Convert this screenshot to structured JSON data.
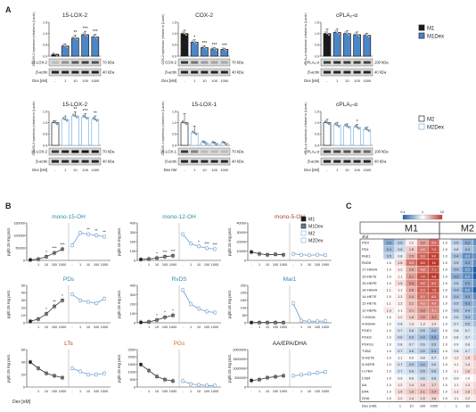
{
  "panels": {
    "A": "A",
    "B": "B",
    "C": "C"
  },
  "colors": {
    "m1": "#1a1a1a",
    "m1dex": "#4a86c8",
    "m2": "#ffffff",
    "m2dex": "#7ab3e0",
    "red": "#c0392b"
  },
  "legendA_top": [
    "M1",
    "M1Dex"
  ],
  "legendA_bot": [
    "M2",
    "M2Dex"
  ],
  "legendB": [
    "M1",
    "M1Dex",
    "M2",
    "M2Dex"
  ],
  "panelA": {
    "doses": [
      "-",
      "1",
      "10",
      "100",
      "1000"
    ],
    "kda70": "70 kDa",
    "kda40": "40 kDa",
    "kda100": "100 kDa",
    "actin": "β-actin",
    "dex_nm": "Dex [nM]",
    "dex_nm2": "Dex nM",
    "top": [
      {
        "title": "15-LOX-2",
        "ylabel": "15-LOX-2 expression (relative to β-actin)",
        "band": "15-LOX-2",
        "kda": "70 kDa",
        "ticks": [
          "1.5",
          "1.0",
          "0.5",
          "0.0"
        ],
        "ymax": 1.5,
        "values": [
          0.08,
          0.45,
          0.8,
          0.95,
          0.85
        ],
        "errors": [
          0.02,
          0.1,
          0.12,
          0.15,
          0.12
        ],
        "sig": [
          "",
          "",
          "**",
          "***",
          "***"
        ],
        "style": "m1"
      },
      {
        "title": "COX-2",
        "ylabel": "COX-2 expression (relative to β-actin)",
        "band": "COX-2",
        "kda": "70 kDa",
        "ticks": [
          "1.5",
          "1.0",
          "0.5",
          "0.0"
        ],
        "ymax": 1.5,
        "values": [
          1.0,
          0.62,
          0.38,
          0.32,
          0.3
        ],
        "errors": [
          0.15,
          0.1,
          0.08,
          0.06,
          0.05
        ],
        "sig": [
          "",
          "*",
          "***",
          "***",
          "***"
        ],
        "style": "m1"
      },
      {
        "title": "cPLA₂-α",
        "ylabel": "cPLA₂-α expression (relative to β-actin)",
        "band": "cPLA₂-α",
        "kda": "100 kDa",
        "ticks": [
          "1.5",
          "1.0",
          "0.5",
          "0.0"
        ],
        "ymax": 1.5,
        "values": [
          1.0,
          1.05,
          1.0,
          0.95,
          0.92
        ],
        "errors": [
          0.2,
          0.15,
          0.12,
          0.12,
          0.1
        ],
        "sig": [
          "",
          "",
          "",
          "",
          ""
        ],
        "style": "m1"
      }
    ],
    "bottom": [
      {
        "title": "15-LOX-2",
        "ylabel": "15-LOX-2 expression (relative to β-actin)",
        "band": "15-LOX-2",
        "kda": "70 kDa",
        "ticks": [
          "1.5",
          "1.0",
          "0.5",
          "0.0"
        ],
        "ymax": 1.5,
        "values": [
          1.0,
          1.15,
          1.3,
          1.25,
          1.15
        ],
        "errors": [
          0.1,
          0.15,
          0.18,
          0.15,
          0.15
        ],
        "sig": [
          "",
          "",
          "**",
          "***",
          "**"
        ],
        "style": "m2"
      },
      {
        "title": "15-LOX-1",
        "ylabel": "15-LOX-1 expression (relative to β-actin)",
        "band": "15-LOX-1",
        "kda": "70 kDa",
        "ticks": [
          "1.5",
          "1.0",
          "0.5",
          "0.0"
        ],
        "ymax": 1.5,
        "values": [
          1.0,
          0.55,
          0.12,
          0.1,
          0.1
        ],
        "errors": [
          0.4,
          0.3,
          0.05,
          0.05,
          0.05
        ],
        "sig": [
          "",
          "",
          "",
          "",
          ""
        ],
        "style": "m2"
      },
      {
        "title": "cPLA₂-α",
        "ylabel": "cPLA₂-α expression (relative to β-actin)",
        "band": "cPLA₂-α",
        "kda": "100 kDa",
        "ticks": [
          "1.5",
          "1.0",
          "0.5",
          "0.0"
        ],
        "ymax": 1.5,
        "values": [
          1.0,
          0.9,
          0.85,
          0.8,
          0.7
        ],
        "errors": [
          0.15,
          0.12,
          0.1,
          0.12,
          0.1
        ],
        "sig": [
          "",
          "",
          "",
          "*",
          ""
        ],
        "style": "m2"
      }
    ]
  },
  "panelB": {
    "ylabel": "pg/0.15 mg prot.",
    "dex_label": "Dex [nM]",
    "doses": [
      "-",
      "1",
      "10",
      "100",
      "1000"
    ],
    "subplots": [
      {
        "title": "mono-15-OH",
        "title_color": "#2e8ba8",
        "ticks": [
          "150000",
          "100000",
          "50000",
          "0"
        ],
        "ymax": 150000,
        "m1": [
          2000,
          5000,
          15000,
          30000,
          45000
        ],
        "m2": [
          60000,
          110000,
          105000,
          100000,
          95000
        ],
        "sig_m1": [
          "",
          "",
          "*",
          "***",
          "***"
        ],
        "sig_m2": [
          "",
          "",
          "**",
          "**",
          "**"
        ]
      },
      {
        "title": "mono-12-OH",
        "title_color": "#2e8ba8",
        "ticks": [
          "400",
          "300",
          "200",
          "100",
          "0"
        ],
        "ymax": 400,
        "m1": [
          10,
          15,
          25,
          40,
          50
        ],
        "m2": [
          280,
          180,
          150,
          130,
          120
        ],
        "sig_m1": [
          "",
          "",
          "*",
          "***",
          "***"
        ],
        "sig_m2": [
          "",
          "",
          "*",
          "***",
          "***"
        ]
      },
      {
        "title": "mono-5-OH",
        "title_color": "#b03a2e",
        "ticks": [
          "40000",
          "30000",
          "20000",
          "10000",
          "0"
        ],
        "ymax": 40000,
        "m1": [
          9000,
          7000,
          6000,
          6500,
          6000
        ],
        "m2": [
          7000,
          6000,
          5500,
          6000,
          5500
        ],
        "sig_m1": [
          "",
          "",
          "",
          "",
          ""
        ],
        "sig_m2": [
          "",
          "",
          "",
          "",
          ""
        ]
      },
      {
        "title": "PDs",
        "title_color": "#2e8ba8",
        "ticks": [
          "50",
          "40",
          "30",
          "20",
          "10",
          "0"
        ],
        "ymax": 50,
        "m1": [
          2,
          5,
          12,
          22,
          30
        ],
        "m2": [
          38,
          30,
          28,
          26,
          32
        ],
        "sig_m1": [
          "",
          "",
          "*",
          "**",
          "*"
        ],
        "sig_m2": [
          "",
          "",
          "",
          "",
          ""
        ]
      },
      {
        "title": "RvDS",
        "title_color": "#2e8ba8",
        "ticks": [
          "400",
          "300",
          "200",
          "100",
          "0"
        ],
        "ymax": 400,
        "m1": [
          5,
          10,
          30,
          60,
          80
        ],
        "m2": [
          350,
          200,
          150,
          120,
          110
        ],
        "sig_m1": [
          "",
          "",
          "*",
          "*",
          "*"
        ],
        "sig_m2": [
          "",
          "",
          "",
          "",
          ""
        ]
      },
      {
        "title": "Mar1",
        "title_color": "#2e8ba8",
        "ticks": [
          "250",
          "200",
          "150",
          "100",
          "50",
          "0"
        ],
        "ymax": 250,
        "m1": [
          2,
          2,
          2,
          2,
          2
        ],
        "m2": [
          130,
          15,
          10,
          10,
          12
        ],
        "sig_m1": [
          "",
          "",
          "",
          "",
          ""
        ],
        "sig_m2": [
          "",
          "",
          "",
          "",
          ""
        ]
      },
      {
        "title": "LTs",
        "title_color": "#c0392b",
        "ticks": [
          "60",
          "40",
          "20",
          "0"
        ],
        "ymax": 60,
        "m1": [
          40,
          30,
          22,
          18,
          15
        ],
        "m2": [
          30,
          25,
          20,
          20,
          22
        ],
        "sig_m1": [
          "",
          "",
          "",
          "",
          ""
        ],
        "sig_m2": [
          "",
          "",
          "",
          "",
          ""
        ]
      },
      {
        "title": "PGs",
        "title_color": "#d46a1e",
        "ticks": [
          "2500",
          "2000",
          "1500",
          "1000",
          "500",
          "0"
        ],
        "ymax": 2500,
        "m1": [
          1500,
          1100,
          700,
          500,
          400
        ],
        "m2": [
          400,
          200,
          150,
          100,
          100
        ],
        "sig_m1": [
          "",
          "",
          "",
          "",
          ""
        ],
        "sig_m2": [
          "",
          "",
          "",
          "",
          ""
        ]
      },
      {
        "title": "AA/EPA/DHA",
        "title_color": "#222222",
        "ticks": [
          "2000000",
          "1500000",
          "1000000",
          "500000",
          "0"
        ],
        "ymax": 2000000,
        "m1": [
          350000,
          400000,
          500000,
          550000,
          600000
        ],
        "m2": [
          600000,
          650000,
          700000,
          750000,
          800000
        ],
        "sig_m1": [
          "",
          "",
          "",
          "",
          ""
        ],
        "sig_m2": [
          "",
          "",
          "",
          "",
          ""
        ]
      }
    ]
  },
  "panelC": {
    "scale_labels": [
      "0.1",
      "1",
      "10"
    ],
    "col_group": [
      "M1",
      "M2"
    ],
    "row_header": "4hd",
    "dex_label": "Dex (nM)",
    "doses": [
      "-",
      "1",
      "10",
      "100",
      "1000"
    ],
    "rows": [
      "PDX",
      "PD1",
      "RvE1",
      "RvD5",
      "17-HDHA",
      "15-HETE",
      "15-HEPE",
      "14-HDHA",
      "14-HETE",
      "12-HETE",
      "12-HEPE",
      "7-HDHA",
      "4-HDHA",
      "PGE2",
      "PGD2",
      "PGF2α",
      "TXB2",
      "5-HETE",
      "5-HEPE",
      "t-LTB4",
      "LTB4",
      "AA",
      "EPA",
      "DHA"
    ],
    "m1": [
      [
        "0.3",
        "0.5",
        "1.2",
        "3.0",
        "5.5"
      ],
      [
        "0.4",
        "0.6",
        "1.8",
        "4.5",
        "7.0"
      ],
      [
        "0.5",
        "0.8",
        "2.5",
        "6.0",
        "9.0"
      ],
      [
        "1.0",
        "1.6",
        "5.0",
        "8.5",
        "14"
      ],
      [
        "1.0",
        "1.2",
        "2.6",
        "4.8",
        "7.1"
      ],
      [
        "1.0",
        "1.1",
        "3.1",
        "7.4",
        "9.8"
      ],
      [
        "1.0",
        "1.5",
        "3.4",
        "5.6",
        "6.2"
      ],
      [
        "1.1",
        "1.1",
        "2.6",
        "6.3",
        "7.8"
      ],
      [
        "1.0",
        "1.2",
        "2.4",
        "5.3",
        "6.0"
      ],
      [
        "1.1",
        "1.2",
        "2.1",
        "4.0",
        "4.9"
      ],
      [
        "1.3",
        "1.1",
        "2.1",
        "3.3",
        "4.1"
      ],
      [
        "1.0",
        "1.2",
        "1.8",
        "2.9",
        "3.4"
      ],
      [
        "1.0",
        "0.8",
        "1.3",
        "1.3",
        "1.4"
      ],
      [
        "1.0",
        "0.7",
        "0.6",
        "0.5",
        "0.4"
      ],
      [
        "1.0",
        "0.6",
        "0.5",
        "0.4",
        "0.3"
      ],
      [
        "1.0",
        "0.8",
        "0.7",
        "0.6",
        "0.5"
      ],
      [
        "1.0",
        "0.7",
        "0.6",
        "0.5",
        "0.4"
      ],
      [
        "1.0",
        "1.1",
        "0.9",
        "0.8",
        "0.7"
      ],
      [
        "1.0",
        "0.7",
        "0.5",
        "0.4",
        "0.6"
      ],
      [
        "1.0",
        "0.7",
        "0.6",
        "0.5",
        "0.5"
      ],
      [
        "1.0",
        "0.9",
        "0.8",
        "0.6",
        "0.6"
      ],
      [
        "1.0",
        "1.2",
        "1.4",
        "1.6",
        "1.7"
      ],
      [
        "1.0",
        "1.5",
        "1.9",
        "2.1",
        "2.4"
      ],
      [
        "1.0",
        "1.2",
        "1.4",
        "1.5",
        "1.6"
      ]
    ],
    "m2": [
      [
        "1.0",
        "0.5",
        "0.3",
        "0.2",
        "0.2"
      ],
      [
        "1.0",
        "0.6",
        "0.4",
        "0.3",
        "0.3"
      ],
      [
        "1.0",
        "0.4",
        "0.2",
        "0.2",
        "0.1"
      ],
      [
        "1.0",
        "0.5",
        "0.3",
        "0.2",
        "0.2"
      ],
      [
        "1.0",
        "0.4",
        "0.2",
        "0.1",
        "0.1"
      ],
      [
        "1.0",
        "0.3",
        "0.2",
        "0.1",
        "0.1"
      ],
      [
        "1.0",
        "0.5",
        "0.3",
        "0.2",
        "0.2"
      ],
      [
        "1.0",
        "0.4",
        "0.2",
        "0.1",
        "0.1"
      ],
      [
        "1.0",
        "0.4",
        "0.3",
        "0.2",
        "0.2"
      ],
      [
        "1.0",
        "0.5",
        "0.3",
        "0.3",
        "0.2"
      ],
      [
        "1.0",
        "0.5",
        "0.4",
        "0.3",
        "0.3"
      ],
      [
        "1.0",
        "0.6",
        "0.4",
        "0.3",
        "0.3"
      ],
      [
        "1.0",
        "0.7",
        "0.5",
        "0.4",
        "0.4"
      ],
      [
        "1.0",
        "0.8",
        "0.7",
        "0.6",
        "0.6"
      ],
      [
        "1.0",
        "0.8",
        "0.7",
        "0.6",
        "0.5"
      ],
      [
        "1.0",
        "0.9",
        "0.8",
        "0.7",
        "0.6"
      ],
      [
        "1.0",
        "0.8",
        "0.7",
        "0.6",
        "0.6"
      ],
      [
        "1.0",
        "1.2",
        "1.5",
        "2.1",
        "2.6"
      ],
      [
        "1.0",
        "1.1",
        "1.4",
        "1.6",
        "2.0"
      ],
      [
        "1.0",
        "1.1",
        "1.6",
        "1.8",
        "2.2"
      ],
      [
        "1.0",
        "0.9",
        "1.0",
        "1.2",
        "1.3"
      ],
      [
        "1.0",
        "1.1",
        "1.3",
        "1.5",
        "1.6"
      ],
      [
        "1.0",
        "1.3",
        "1.6",
        "1.9",
        "2.1"
      ],
      [
        "1.0",
        "1.1",
        "1.2",
        "1.3",
        "1.4"
      ]
    ]
  }
}
